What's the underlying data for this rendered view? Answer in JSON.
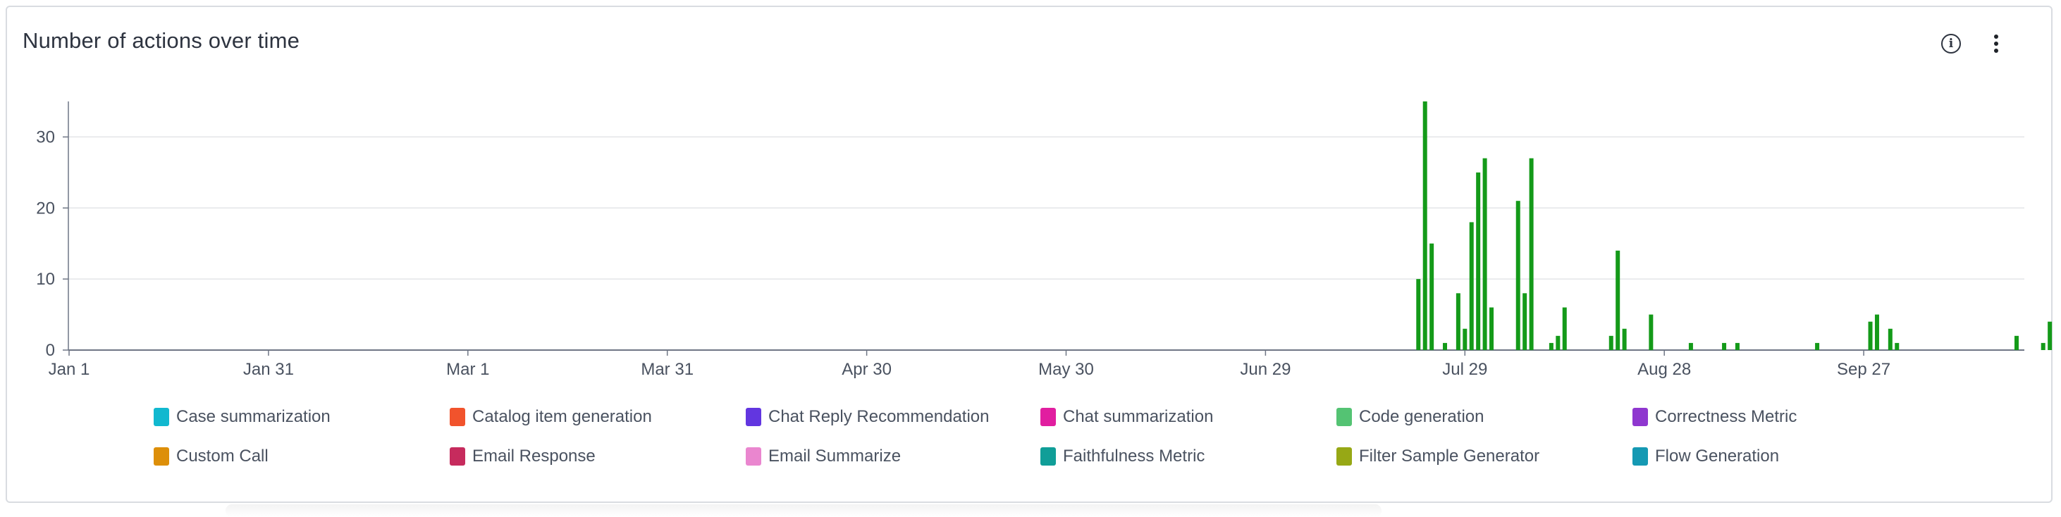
{
  "card": {
    "title": "Number of actions over time",
    "info_icon": "info-icon",
    "more_icon": "more-vertical-icon"
  },
  "chart_data": {
    "type": "bar",
    "title": "Number of actions over time",
    "xlabel": "",
    "ylabel": "",
    "xlim": [
      "Jan 1",
      "Oct 26"
    ],
    "ylim": [
      0,
      35
    ],
    "y_ticks": [
      0,
      10,
      20,
      30
    ],
    "x_tick_labels": [
      "Jan 1",
      "Jan 31",
      "Mar 1",
      "Mar 31",
      "Apr 30",
      "May 30",
      "Jun 29",
      "Jul 29",
      "Aug 28",
      "Sep 27"
    ],
    "grid": true,
    "legend_position": "bottom",
    "bar_color": "#149a19",
    "series": [
      {
        "name": "Code generation",
        "points": [
          {
            "x": "Jul 22",
            "y": 10
          },
          {
            "x": "Jul 23",
            "y": 35
          },
          {
            "x": "Jul 24",
            "y": 15
          },
          {
            "x": "Jul 26",
            "y": 1
          },
          {
            "x": "Jul 28",
            "y": 8
          },
          {
            "x": "Jul 29",
            "y": 3
          },
          {
            "x": "Jul 30",
            "y": 18
          },
          {
            "x": "Jul 31",
            "y": 25
          },
          {
            "x": "Aug 1",
            "y": 27
          },
          {
            "x": "Aug 2",
            "y": 6
          },
          {
            "x": "Aug 6",
            "y": 21
          },
          {
            "x": "Aug 7",
            "y": 8
          },
          {
            "x": "Aug 8",
            "y": 27
          },
          {
            "x": "Aug 11",
            "y": 1
          },
          {
            "x": "Aug 12",
            "y": 2
          },
          {
            "x": "Aug 13",
            "y": 6
          },
          {
            "x": "Aug 20",
            "y": 2
          },
          {
            "x": "Aug 21",
            "y": 14
          },
          {
            "x": "Aug 22",
            "y": 3
          },
          {
            "x": "Aug 26",
            "y": 5
          },
          {
            "x": "Sep 1",
            "y": 1
          },
          {
            "x": "Sep 6",
            "y": 1
          },
          {
            "x": "Sep 8",
            "y": 1
          },
          {
            "x": "Sep 20",
            "y": 1
          },
          {
            "x": "Sep 28",
            "y": 4
          },
          {
            "x": "Sep 29",
            "y": 5
          },
          {
            "x": "Oct 1",
            "y": 3
          },
          {
            "x": "Oct 2",
            "y": 1
          },
          {
            "x": "Oct 20",
            "y": 2
          },
          {
            "x": "Oct 24",
            "y": 1
          },
          {
            "x": "Oct 25",
            "y": 4
          }
        ]
      }
    ],
    "legend": [
      {
        "label": "Case summarization",
        "color": "#11b8cf"
      },
      {
        "label": "Catalog item generation",
        "color": "#f1532c"
      },
      {
        "label": "Chat Reply Recommendation",
        "color": "#6236e0"
      },
      {
        "label": "Chat summarization",
        "color": "#e11ea0"
      },
      {
        "label": "Code generation",
        "color": "#54c373"
      },
      {
        "label": "Correctness Metric",
        "color": "#8f37cf"
      },
      {
        "label": "Custom Call",
        "color": "#dd8f09"
      },
      {
        "label": "Email Response",
        "color": "#c62b5d"
      },
      {
        "label": "Email Summarize",
        "color": "#ea86cf"
      },
      {
        "label": "Faithfulness Metric",
        "color": "#109e98"
      },
      {
        "label": "Filter Sample Generator",
        "color": "#97a815"
      },
      {
        "label": "Flow Generation",
        "color": "#1599b3"
      }
    ]
  }
}
